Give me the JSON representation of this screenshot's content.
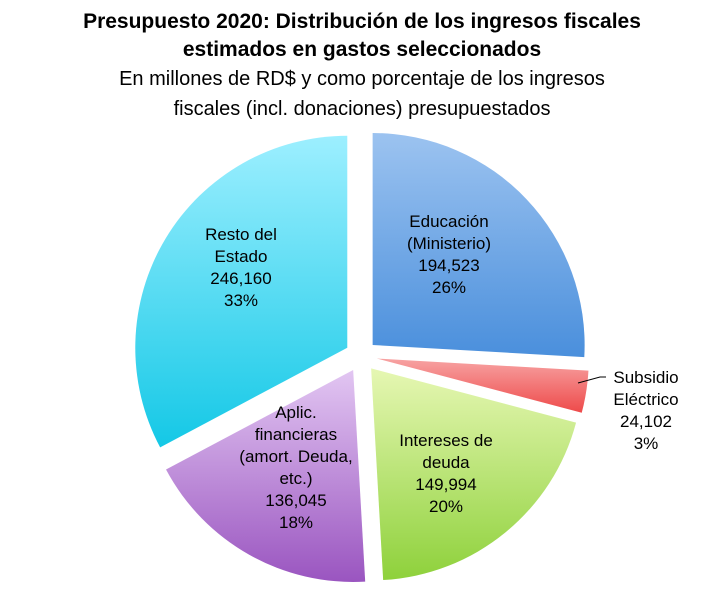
{
  "chart_data": {
    "type": "pie",
    "title_lines": [
      "Presupuesto 2020: Distribución de los ingresos fiscales",
      "estimados en gastos seleccionados"
    ],
    "subtitle_lines": [
      "En millones de RD$ y como porcentaje de los ingresos",
      "fiscales (incl. donaciones) presupuestados"
    ],
    "slices": [
      {
        "label_lines": [
          "Educación",
          "(Ministerio)"
        ],
        "value": 194523,
        "value_text": "194,523",
        "percent_text": "26%",
        "color_top": "#9cc3f0",
        "color_bottom": "#4a8fdc"
      },
      {
        "label_lines": [
          "Subsidio",
          "Eléctrico"
        ],
        "value": 24102,
        "value_text": "24,102",
        "percent_text": "3%",
        "color_top": "#f7a3a3",
        "color_bottom": "#ee4a4a"
      },
      {
        "label_lines": [
          "Intereses de",
          "deuda"
        ],
        "value": 149994,
        "value_text": "149,994",
        "percent_text": "20%",
        "color_top": "#e6f7b3",
        "color_bottom": "#8ed13b"
      },
      {
        "label_lines": [
          "Aplic.",
          "financieras",
          "(amort. Deuda,",
          "etc.)"
        ],
        "value": 136045,
        "value_text": "136,045",
        "percent_text": "18%",
        "color_top": "#e2c6f2",
        "color_bottom": "#9a55c0"
      },
      {
        "label_lines": [
          "Resto del",
          "Estado"
        ],
        "value": 246160,
        "value_text": "246,160",
        "percent_text": "33%",
        "color_top": "#9defff",
        "color_bottom": "#14c8e6"
      }
    ]
  }
}
